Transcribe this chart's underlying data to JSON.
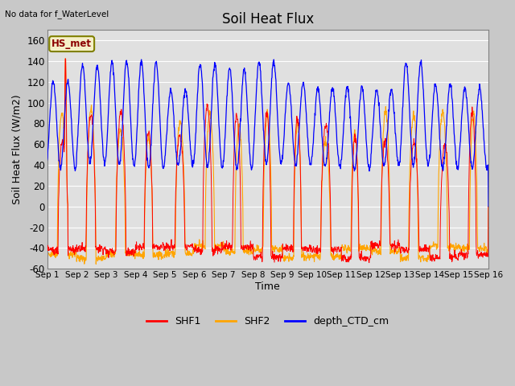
{
  "title": "Soil Heat Flux",
  "top_left_text": "No data for f_WaterLevel",
  "box_label": "HS_met",
  "ylabel": "Soil Heat Flux (W/m2)",
  "xlabel": "Time",
  "ylim": [
    -60,
    170
  ],
  "yticks": [
    -60,
    -40,
    -20,
    0,
    20,
    40,
    60,
    80,
    100,
    120,
    140,
    160
  ],
  "plot_bg_color": "#e8e8e8",
  "fig_bg_color": "#c8c8c8",
  "shf1_color": "red",
  "shf2_color": "orange",
  "ctd_color": "blue",
  "n_days": 15,
  "pts_per_day": 96
}
